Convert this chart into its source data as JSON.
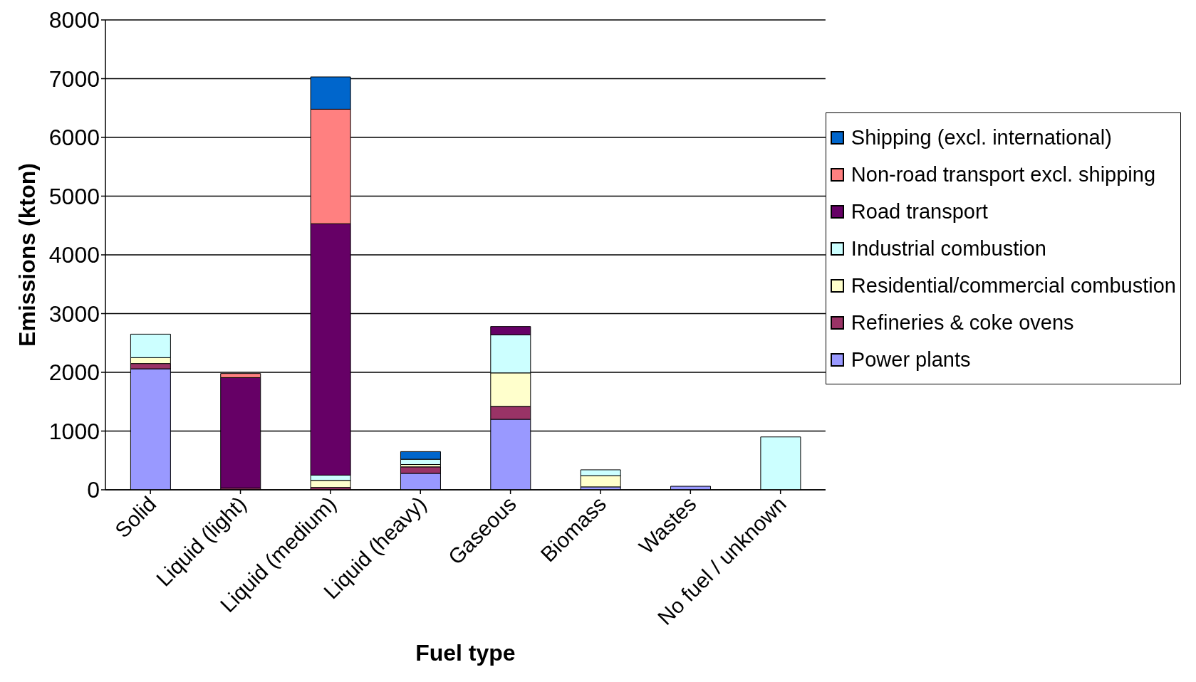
{
  "chart_data": {
    "type": "bar",
    "stacked": true,
    "xlabel": "Fuel type",
    "ylabel": "Emissions (kton)",
    "categories": [
      "Solid",
      "Liquid (light)",
      "Liquid (medium)",
      "Liquid (heavy)",
      "Gaseous",
      "Biomass",
      "Wastes",
      "No fuel / unknown"
    ],
    "series": [
      {
        "name": "Power plants",
        "color": "#9999ff",
        "values": [
          2060,
          0,
          0,
          280,
          1200,
          50,
          60,
          0
        ]
      },
      {
        "name": "Refineries & coke ovens",
        "color": "#993366",
        "values": [
          90,
          30,
          40,
          110,
          220,
          0,
          0,
          0
        ]
      },
      {
        "name": "Residential/commercial combustion",
        "color": "#ffffcc",
        "values": [
          100,
          0,
          120,
          40,
          570,
          190,
          0,
          0
        ]
      },
      {
        "name": "Industrial combustion",
        "color": "#ccffff",
        "values": [
          400,
          0,
          90,
          90,
          650,
          100,
          0,
          900
        ]
      },
      {
        "name": "Road transport",
        "color": "#660066",
        "values": [
          0,
          1880,
          4280,
          0,
          140,
          0,
          0,
          0
        ]
      },
      {
        "name": "Non-road transport excl. shipping",
        "color": "#ff8080",
        "values": [
          0,
          70,
          1950,
          0,
          0,
          0,
          0,
          0
        ]
      },
      {
        "name": "Shipping (excl. international)",
        "color": "#0066cc",
        "values": [
          0,
          0,
          550,
          130,
          0,
          0,
          0,
          0
        ]
      }
    ],
    "ylim": [
      0,
      8000
    ],
    "yticks": [
      0,
      1000,
      2000,
      3000,
      4000,
      5000,
      6000,
      7000,
      8000
    ],
    "grid": "y",
    "legend": "right"
  }
}
